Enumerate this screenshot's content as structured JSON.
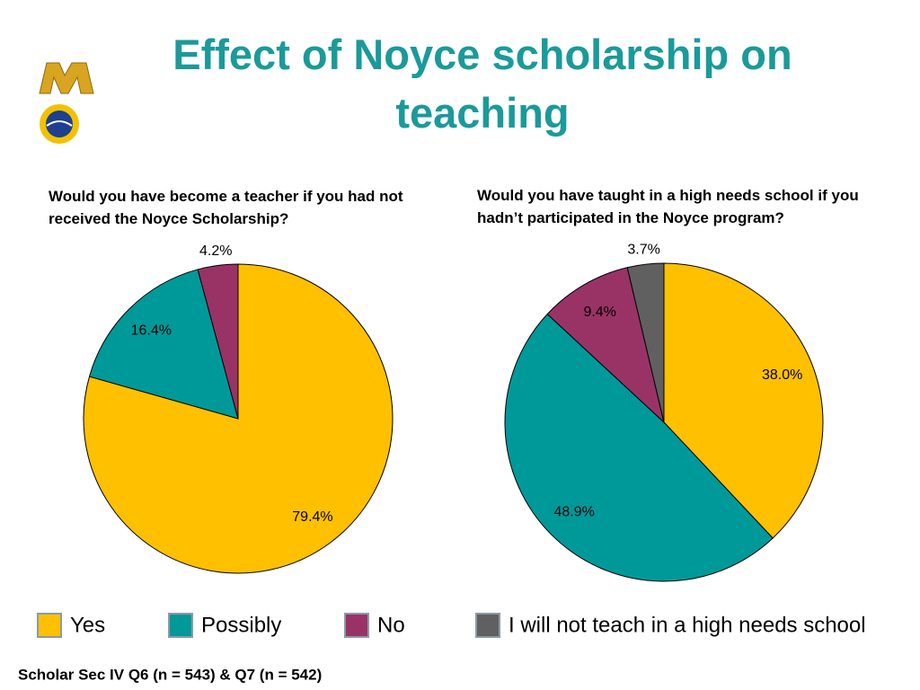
{
  "title": "Effect of Noyce scholarship on teaching",
  "footnote": "Scholar Sec IV Q6 (n = 543) & Q7 (n = 542)",
  "legend": {
    "items": [
      {
        "name": "Yes",
        "color": "#FFC000"
      },
      {
        "name": "Possibly",
        "color": "#009999"
      },
      {
        "name": "No",
        "color": "#993366"
      },
      {
        "name": "I will not teach in a high needs school",
        "color": "#606060"
      }
    ]
  },
  "chart_data": [
    {
      "type": "pie",
      "title": "Would you have become a teacher if you had not received the Noyce Scholarship?",
      "values": [
        79.4,
        16.4,
        4.2
      ],
      "value_labels": [
        "79.4%",
        "16.4%",
        "4.2%"
      ],
      "colors": [
        "#FFC000",
        "#009999",
        "#993366"
      ]
    },
    {
      "type": "pie",
      "title": "Would you have taught in a high needs school if you hadn’t participated in the Noyce program?",
      "values": [
        38.0,
        48.9,
        9.4,
        3.7
      ],
      "value_labels": [
        "38.0%",
        "48.9%",
        "9.4%",
        "3.7%"
      ],
      "colors": [
        "#FFC000",
        "#009999",
        "#993366",
        "#606060"
      ]
    }
  ]
}
